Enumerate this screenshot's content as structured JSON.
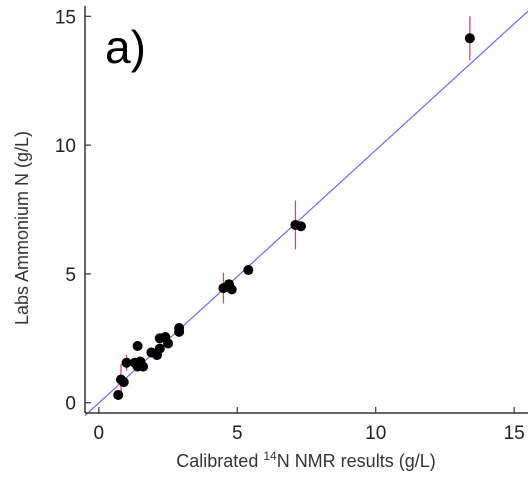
{
  "chart_data": {
    "type": "scatter",
    "panel_label": "a)",
    "xlabel_prefix": "Calibrated ",
    "xlabel_superscript": "14",
    "xlabel_suffix": "N NMR results (g/L)",
    "ylabel": "Labs Ammonium N (g/L)",
    "xlim": [
      -0.5,
      15.5
    ],
    "ylim": [
      -0.4,
      15.4
    ],
    "xticks": [
      0,
      5,
      10,
      15
    ],
    "yticks": [
      0,
      5,
      10,
      15
    ],
    "x_tick_labels": [
      "0",
      "5",
      "10",
      "15"
    ],
    "y_tick_labels": [
      "0",
      "5",
      "10",
      "15"
    ],
    "grid": false,
    "colors": {
      "points": "#000000",
      "error_bars": "#e0407a",
      "fit_line": "#6a6af0",
      "axes": "#333333"
    },
    "fit_line": {
      "x": [
        -0.5,
        15.5
      ],
      "y": [
        -0.5,
        15.2
      ]
    },
    "points": [
      {
        "x": 0.7,
        "y": 0.3,
        "err": 0.1
      },
      {
        "x": 0.8,
        "y": 0.9,
        "err": 0.6
      },
      {
        "x": 0.9,
        "y": 0.8,
        "err": 0
      },
      {
        "x": 1.0,
        "y": 1.55,
        "err": 0.3
      },
      {
        "x": 1.3,
        "y": 1.55,
        "err": 0
      },
      {
        "x": 1.4,
        "y": 2.2,
        "err": 0
      },
      {
        "x": 1.4,
        "y": 1.4,
        "err": 0
      },
      {
        "x": 1.5,
        "y": 1.6,
        "err": 0
      },
      {
        "x": 1.6,
        "y": 1.4,
        "err": 0
      },
      {
        "x": 1.9,
        "y": 1.95,
        "err": 0
      },
      {
        "x": 2.1,
        "y": 1.85,
        "err": 0
      },
      {
        "x": 2.2,
        "y": 2.1,
        "err": 0
      },
      {
        "x": 2.2,
        "y": 2.5,
        "err": 0
      },
      {
        "x": 2.4,
        "y": 2.55,
        "err": 0
      },
      {
        "x": 2.5,
        "y": 2.3,
        "err": 0
      },
      {
        "x": 2.9,
        "y": 2.75,
        "err": 0
      },
      {
        "x": 2.9,
        "y": 2.9,
        "err": 0
      },
      {
        "x": 4.5,
        "y": 4.45,
        "err": 0.6
      },
      {
        "x": 4.7,
        "y": 4.6,
        "err": 0
      },
      {
        "x": 4.8,
        "y": 4.4,
        "err": 0
      },
      {
        "x": 5.4,
        "y": 5.15,
        "err": 0
      },
      {
        "x": 7.1,
        "y": 6.9,
        "err": 0.95
      },
      {
        "x": 7.3,
        "y": 6.85,
        "err": 0
      },
      {
        "x": 13.4,
        "y": 14.15,
        "err": 0.85
      }
    ]
  }
}
